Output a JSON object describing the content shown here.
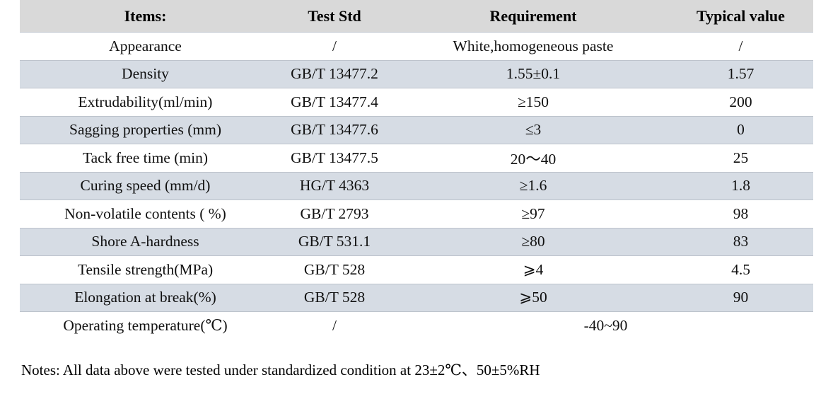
{
  "table": {
    "headers": [
      "Items:",
      "Test Std",
      "Requirement",
      "Typical value"
    ],
    "rows": [
      {
        "item": "Appearance",
        "test_std": "/",
        "requirement": "White,homogeneous paste",
        "typical_value": "/"
      },
      {
        "item": "Density",
        "test_std": "GB/T 13477.2",
        "requirement": "1.55±0.1",
        "typical_value": "1.57"
      },
      {
        "item": "Extrudability(ml/min)",
        "test_std": "GB/T 13477.4",
        "requirement": "≥150",
        "typical_value": "200"
      },
      {
        "item": "Sagging properties (mm)",
        "test_std": "GB/T 13477.6",
        "requirement": "≤3",
        "typical_value": "0"
      },
      {
        "item": "Tack free time (min)",
        "test_std": "GB/T 13477.5",
        "requirement": "20～40",
        "typical_value": "25"
      },
      {
        "item": "Curing speed (mm/d)",
        "test_std": "HG/T 4363",
        "requirement": "≥1.6",
        "typical_value": "1.8"
      },
      {
        "item": "Non-volatile contents ( %)",
        "test_std": "GB/T 2793",
        "requirement": "≥97",
        "typical_value": "98"
      },
      {
        "item": "Shore A-hardness",
        "test_std": "GB/T 531.1",
        "requirement": "≥80",
        "typical_value": "83"
      },
      {
        "item": "Tensile strength(MPa)",
        "test_std": "GB/T 528",
        "requirement": "⩾4",
        "typical_value": "4.5"
      },
      {
        "item": "Elongation at break(%)",
        "test_std": "GB/T 528",
        "requirement": "⩾50",
        "typical_value": "90"
      },
      {
        "item": "Operating temperature(℃)",
        "test_std": "/",
        "requirement": "-40~90"
      }
    ]
  },
  "notes": "Notes: All data above were tested under standardized condition at 23±2℃、50±5%RH",
  "colors": {
    "header_bg": "#d9d9d9",
    "alt_row_bg": "#d6dce4",
    "row_bg": "#ffffff",
    "row_border": "#bdc3cc",
    "text": "#000000"
  }
}
